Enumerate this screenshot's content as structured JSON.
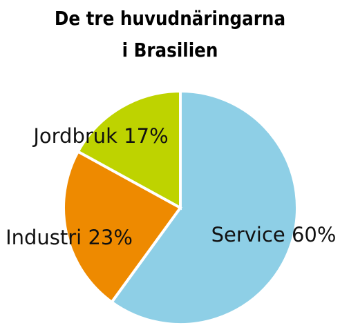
{
  "chart_data": {
    "type": "pie",
    "title_lines": [
      "De tre huvudnäringarna",
      "i Brasilien"
    ],
    "slices": [
      {
        "name": "Service",
        "value": 60,
        "label": "Service 60%",
        "color": "#8ecfe6"
      },
      {
        "name": "Industri",
        "value": 23,
        "label": "Industri 23%",
        "color": "#ee8a00"
      },
      {
        "name": "Jordbruk",
        "value": 17,
        "label": "Jordbruk 17%",
        "color": "#bed300"
      }
    ],
    "start_angle_deg": 0,
    "direction": "clockwise",
    "legend": "none"
  }
}
